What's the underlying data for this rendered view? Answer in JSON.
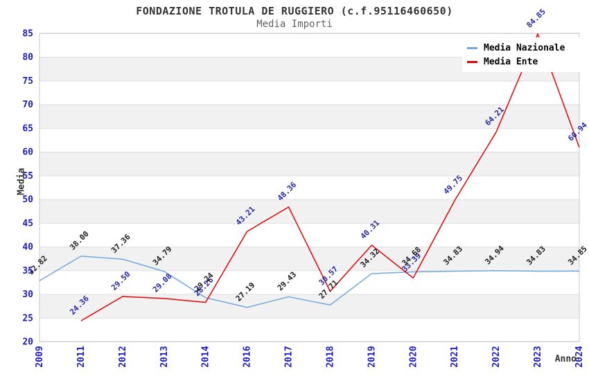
{
  "header": {
    "title": "FONDAZIONE TROTULA DE RUGGIERO (c.f.95116460650)",
    "subtitle": "Media Importi"
  },
  "axes": {
    "y_label": "Media",
    "x_label": "Anno",
    "y_ticks": [
      20,
      25,
      30,
      35,
      40,
      45,
      50,
      55,
      60,
      65,
      70,
      75,
      80,
      85
    ],
    "x_ticks": [
      "2009",
      "2011",
      "2012",
      "2013",
      "2014",
      "2016",
      "2017",
      "2018",
      "2019",
      "2020",
      "2021",
      "2022",
      "2023",
      "2024"
    ]
  },
  "legend": {
    "items": [
      {
        "label": "Media Nazionale",
        "color": "#6fa8dc"
      },
      {
        "label": "Media Ente",
        "color": "#e60000"
      }
    ]
  },
  "colors": {
    "tick_labels": "#1a1acc",
    "title_text": "#333333",
    "subtitle_text": "#606060",
    "band_gray": "#f1f1f1",
    "grid_line": "#dedede",
    "plot_border": "#c8c8c8",
    "nazionale_line": "#6fa8dc",
    "ente_line": "#e60000",
    "nazionale_label": "#1a1a1a",
    "ente_label": "#2626a8"
  },
  "chart_data": {
    "type": "line",
    "title": "FONDAZIONE TROTULA DE RUGGIERO (c.f.95116460650)",
    "subtitle": "Media Importi",
    "xlabel": "Anno",
    "ylabel": "Media",
    "ylim": [
      20,
      85
    ],
    "ytick_step": 5,
    "grid": "horizontal-bands",
    "legend_position": "top-right",
    "categories": [
      "2009",
      "2011",
      "2012",
      "2013",
      "2014",
      "2016",
      "2017",
      "2018",
      "2019",
      "2020",
      "2021",
      "2022",
      "2023",
      "2024"
    ],
    "series": [
      {
        "name": "Media Nazionale",
        "color": "#6fa8dc",
        "label_color": "#1a1a1a",
        "values": [
          32.82,
          38.0,
          37.36,
          34.79,
          29.24,
          27.19,
          29.43,
          27.71,
          34.32,
          34.68,
          34.83,
          34.94,
          34.83,
          34.85
        ]
      },
      {
        "name": "Media Ente",
        "color": "#e60000",
        "label_color": "#2626a8",
        "values": [
          null,
          24.36,
          29.5,
          29.08,
          28.26,
          43.21,
          48.36,
          30.57,
          40.31,
          33.39,
          49.75,
          64.21,
          84.85,
          60.94
        ]
      }
    ]
  }
}
